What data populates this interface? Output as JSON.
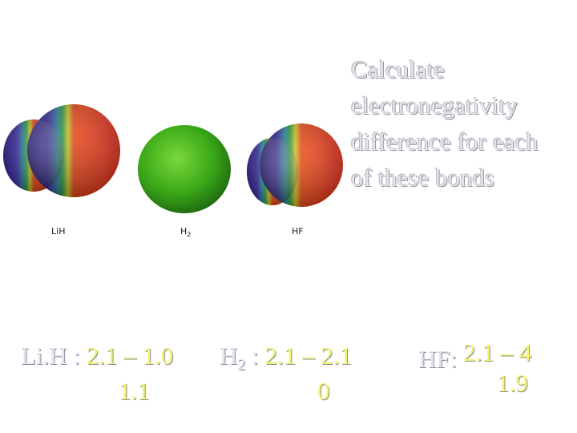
{
  "title": "Calculate\nelectronegativity\ndifference for each\nof these bonds",
  "molecules": [
    {
      "label": "Li.H",
      "colors": [
        "#3a2aa0",
        "#2a8a40",
        "#e02a10"
      ]
    },
    {
      "label": "H2",
      "color": "#4cc020"
    },
    {
      "label": "HF",
      "colors": [
        "#3a2aa0",
        "#2a8a40",
        "#e02a10"
      ]
    }
  ],
  "calcs": [
    {
      "name": "Li.H :",
      "expr": "2.1 – 1.0",
      "result": "1.1"
    },
    {
      "name": "H",
      "sub": "2",
      "sep": " :",
      "expr": "2.1 – 2.1",
      "result": "0"
    },
    {
      "name": "HF:",
      "expr": "2.1 – 4",
      "result": "1.9"
    }
  ]
}
